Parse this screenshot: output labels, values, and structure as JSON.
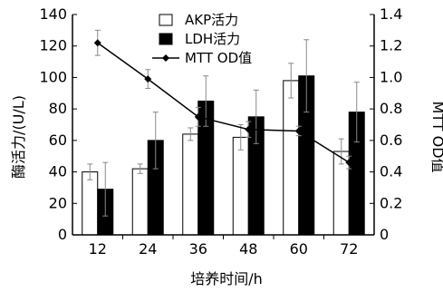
{
  "chart_data": {
    "type": "bar",
    "categories": [
      "12",
      "24",
      "36",
      "48",
      "60",
      "72"
    ],
    "series": [
      {
        "name": "AKP活力",
        "kind": "bar",
        "axis": "left",
        "color": "#ffffff",
        "values": [
          40,
          42,
          64,
          62,
          98,
          53
        ],
        "errors": [
          5,
          3,
          4,
          8,
          11,
          8
        ]
      },
      {
        "name": "LDH活力",
        "kind": "bar",
        "axis": "left",
        "color": "#000000",
        "values": [
          29,
          60,
          85,
          75,
          101,
          78
        ],
        "errors": [
          17,
          18,
          16,
          17,
          23,
          19
        ]
      },
      {
        "name": "MTT OD值",
        "kind": "line",
        "axis": "right",
        "color": "#000000",
        "values": [
          1.22,
          0.99,
          0.75,
          0.67,
          0.66,
          0.46
        ],
        "errors": [
          0.08,
          0.06,
          0.06,
          0.05,
          0.03,
          0.04
        ]
      }
    ],
    "xlabel": "培养时间/h",
    "ylabel": "酶活力/(U/L)",
    "y2label": "MTT OD值",
    "ylim": [
      0,
      140
    ],
    "y2lim": [
      0,
      1.4
    ],
    "yticks": [
      0,
      20,
      40,
      60,
      80,
      100,
      120,
      140
    ],
    "y2ticks": [
      "0",
      "0.2",
      "0.4",
      "0.6",
      "0.8",
      "1.0",
      "1.2",
      "1.4"
    ],
    "legend_position": "top-center",
    "grid": false
  }
}
